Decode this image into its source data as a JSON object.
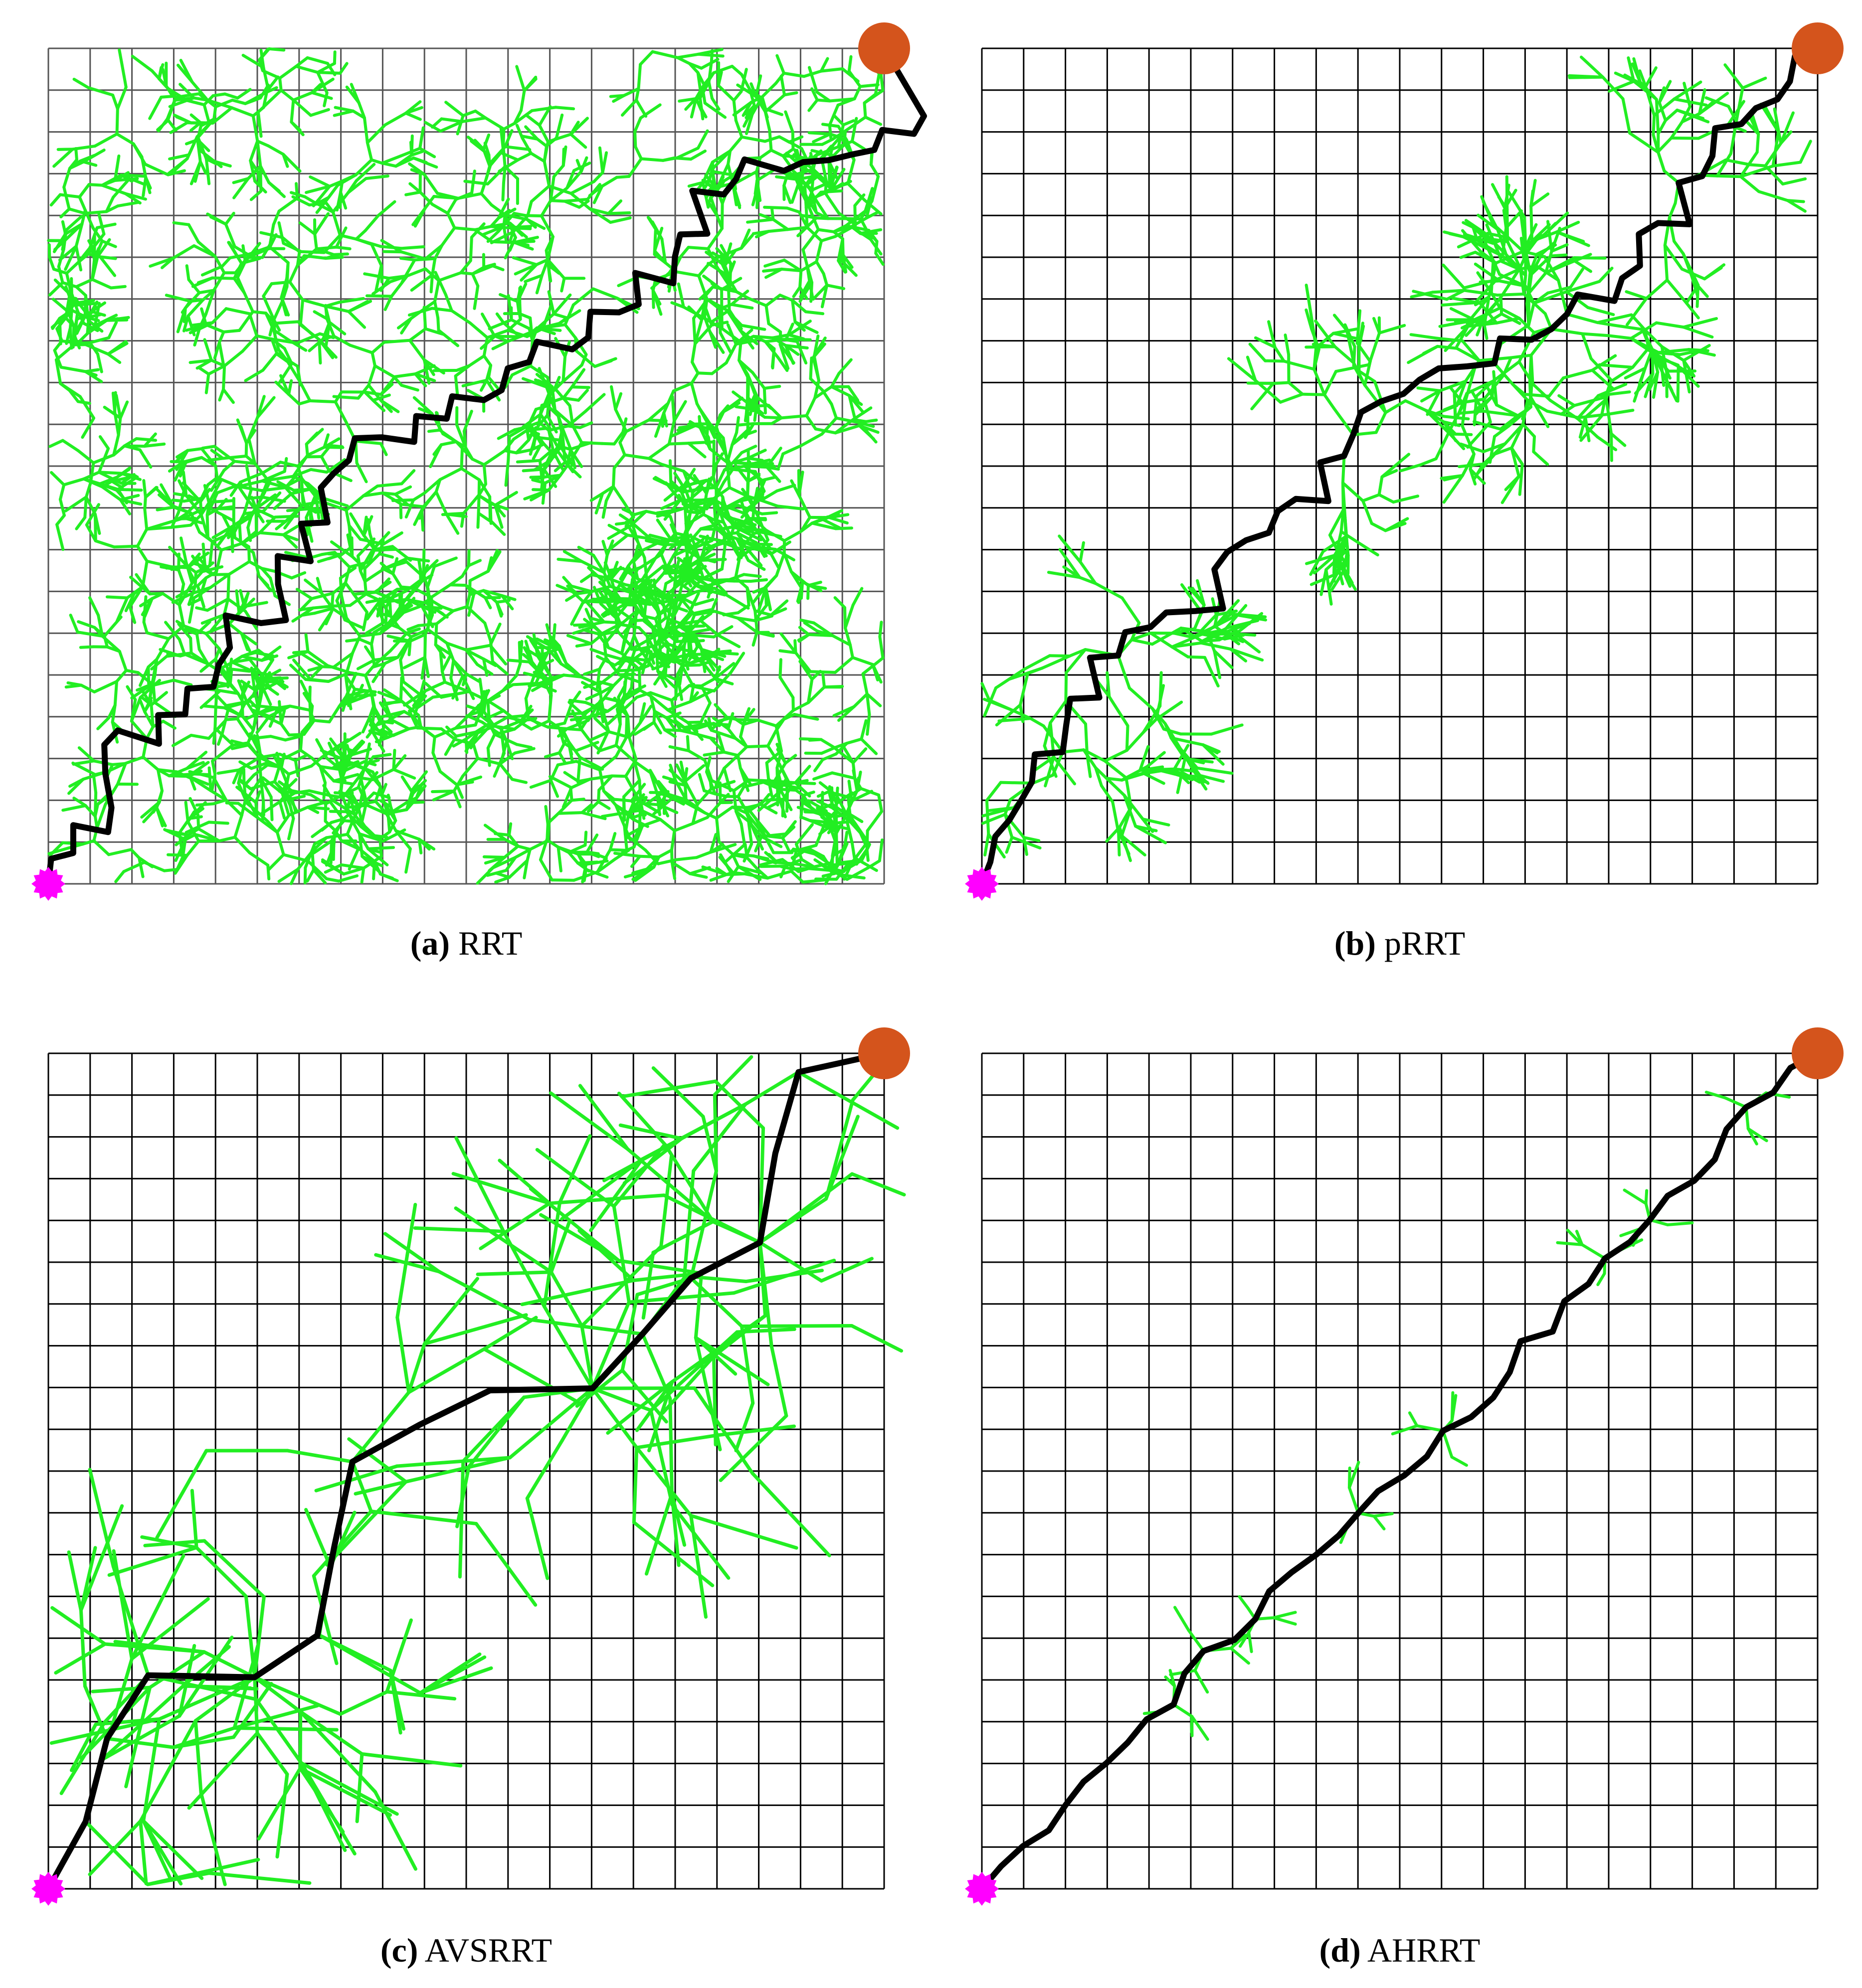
{
  "panels": [
    {
      "label": "(a)",
      "name": "RRT"
    },
    {
      "label": "(b)",
      "name": "pRRT"
    },
    {
      "label": "(c)",
      "name": "AVSRRT"
    },
    {
      "label": "(d)",
      "name": "AHRRT"
    }
  ]
}
